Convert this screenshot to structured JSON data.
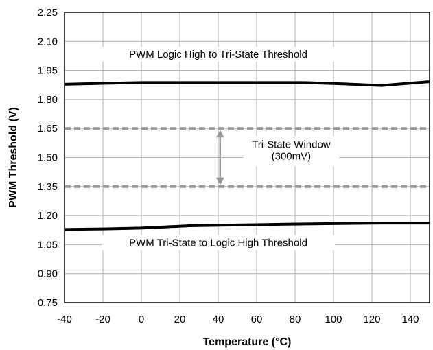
{
  "chart_data": {
    "type": "line",
    "title": "",
    "xlabel": "Temperature (°C)",
    "ylabel": "PWM Threshold (V)",
    "xlim": [
      -40,
      150
    ],
    "ylim": [
      0.75,
      2.25
    ],
    "x_ticks": [
      -40,
      -20,
      0,
      20,
      40,
      60,
      80,
      100,
      120,
      140
    ],
    "x_tick_labels": [
      "-40",
      "-20",
      "0",
      "20",
      "40",
      "60",
      "80",
      "100",
      "120",
      "140"
    ],
    "y_ticks": [
      0.75,
      0.9,
      1.05,
      1.2,
      1.35,
      1.5,
      1.65,
      1.8,
      1.95,
      2.1,
      2.25
    ],
    "y_tick_labels": [
      "0.75",
      "0.90",
      "1.05",
      "1.20",
      "1.35",
      "1.50",
      "1.65",
      "1.80",
      "1.95",
      "2.10",
      "2.25"
    ],
    "grid": true,
    "series": [
      {
        "name": "PWM Logic High to Tri-State Threshold",
        "color": "#000000",
        "x": [
          -40,
          -20,
          0,
          20,
          40,
          60,
          85,
          105,
          125,
          150
        ],
        "y": [
          1.878,
          1.883,
          1.887,
          1.887,
          1.887,
          1.887,
          1.887,
          1.88,
          1.872,
          1.892
        ]
      },
      {
        "name": "PWM Tri-State to Logic High Threshold",
        "color": "#000000",
        "x": [
          -40,
          -20,
          0,
          25,
          50,
          75,
          100,
          125,
          150
        ],
        "y": [
          1.128,
          1.131,
          1.135,
          1.147,
          1.151,
          1.155,
          1.158,
          1.161,
          1.161
        ]
      }
    ],
    "reference_lines": [
      {
        "y": 1.65,
        "style": "dashed",
        "color": "#999999"
      },
      {
        "y": 1.35,
        "style": "dashed",
        "color": "#999999"
      }
    ],
    "annotations": [
      {
        "id": "upper-label",
        "text": "PWM Logic High to Tri-State Threshold",
        "x": 40,
        "y": 2.016
      },
      {
        "id": "lower-label",
        "text": "PWM Tri-State to Logic High Threshold",
        "x": 40,
        "y": 1.042
      },
      {
        "id": "window-label-1",
        "text": "Tri-State Window",
        "x": 78,
        "y": 1.55
      },
      {
        "id": "window-label-2",
        "text": "(300mV)",
        "x": 78,
        "y": 1.49
      }
    ],
    "arrow": {
      "x": 41,
      "y_from": 1.35,
      "y_to": 1.65,
      "color": "#999999"
    }
  }
}
